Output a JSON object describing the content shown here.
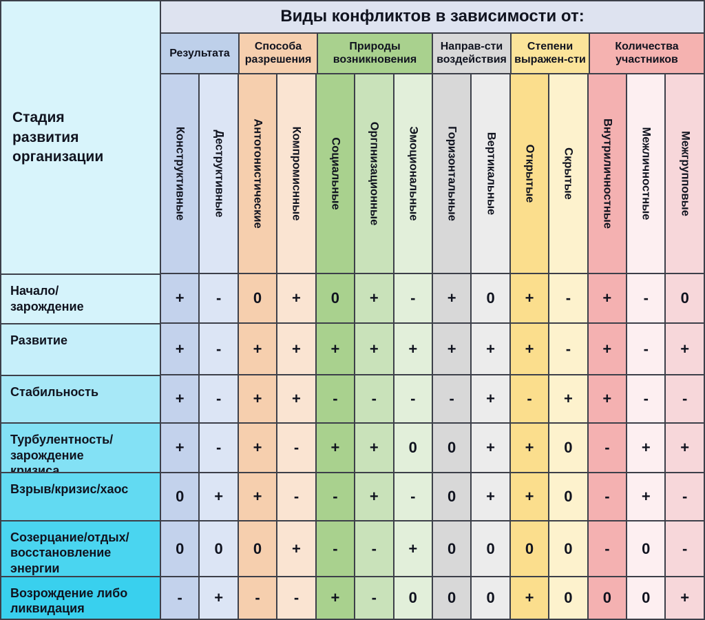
{
  "chart_data": {
    "type": "table",
    "title": "Виды конфликтов в зависимости от:",
    "row_header": "Стадия\nразвития\nорганизации",
    "row_header_color": "#d8f4fb",
    "title_bg_color": "#dee3f0",
    "border_color": "#3c3f49",
    "cell_values_legend": "+ / - / 0",
    "column_groups": [
      {
        "label": "Результата",
        "span": 2,
        "color": "#bed0ea"
      },
      {
        "label": "Способа разрешения",
        "span": 2,
        "color": "#f6cfae"
      },
      {
        "label": "Природы возникновения",
        "span": 3,
        "color": "#a9d18e"
      },
      {
        "label": "Направ-сти воздействия",
        "span": 2,
        "color": "#d8d8d8"
      },
      {
        "label": "Степени выражен-сти",
        "span": 2,
        "color": "#fbe49a"
      },
      {
        "label": "Количества участников",
        "span": 3,
        "color": "#f5b2b0"
      }
    ],
    "columns": [
      {
        "label": "Конструктивные",
        "color": "#c3d2ec"
      },
      {
        "label": "Деструктивные",
        "color": "#dce5f5"
      },
      {
        "label": "Антогонистические",
        "color": "#f6cfae"
      },
      {
        "label": "Компромиснные",
        "color": "#fae4d2"
      },
      {
        "label": "Социальные",
        "color": "#a9d18e"
      },
      {
        "label": "Оргпнизационные",
        "color": "#c9e2ba"
      },
      {
        "label": "Эмоциональные",
        "color": "#e2efda"
      },
      {
        "label": "Горизонтальные",
        "color": "#d8d8d8"
      },
      {
        "label": "Вертикальные",
        "color": "#ececec"
      },
      {
        "label": "Открытые",
        "color": "#fbde8d"
      },
      {
        "label": "Скрытые",
        "color": "#fdf2cd"
      },
      {
        "label": "Внутриличностные",
        "color": "#f4b1b1"
      },
      {
        "label": "Межличностные",
        "color": "#fdeff1"
      },
      {
        "label": "Межгрупповые",
        "color": "#f7d7da"
      }
    ],
    "rows": [
      {
        "label": "Начало/\nзарождение",
        "color": "#d5f3fb",
        "values": [
          "+",
          "-",
          "0",
          "+",
          "0",
          "+",
          "-",
          "+",
          "0",
          "+",
          "-",
          "+",
          "-",
          "0"
        ]
      },
      {
        "label": "Развитие",
        "color": "#c6effa",
        "values": [
          "+",
          "-",
          "+",
          "+",
          "+",
          "+",
          "+",
          "+",
          "+",
          "+",
          "-",
          "+",
          "-",
          "+"
        ]
      },
      {
        "label": "Стабильность",
        "color": "#a7e8f7",
        "values": [
          "+",
          "-",
          "+",
          "+",
          "-",
          "-",
          "-",
          "-",
          "+",
          "-",
          "+",
          "+",
          "-",
          "-"
        ]
      },
      {
        "label": "Турбулентность/\nзарождение\nкризиса",
        "color": "#83e1f5",
        "values": [
          "+",
          "-",
          "+",
          "-",
          "+",
          "+",
          "0",
          "0",
          "+",
          "+",
          "0",
          "-",
          "+",
          "+"
        ]
      },
      {
        "label": "Взрыв/кризис/хаос",
        "color": "#62daf2",
        "values": [
          "0",
          "+",
          "+",
          "-",
          "-",
          "+",
          "-",
          "0",
          "+",
          "+",
          "0",
          "-",
          "+",
          "-"
        ]
      },
      {
        "label": "Созерцание/отдых/\nвосстановление\nэнергии",
        "color": "#4ad5f0",
        "values": [
          "0",
          "0",
          "0",
          "+",
          "-",
          "-",
          "+",
          "0",
          "0",
          "0",
          "0",
          "-",
          "0",
          "-"
        ]
      },
      {
        "label": "Возрождение либо\nликвидация",
        "color": "#39d0ee",
        "values": [
          "-",
          "+",
          "-",
          "-",
          "+",
          "-",
          "0",
          "0",
          "0",
          "+",
          "0",
          "0",
          "0",
          "+"
        ]
      }
    ]
  }
}
